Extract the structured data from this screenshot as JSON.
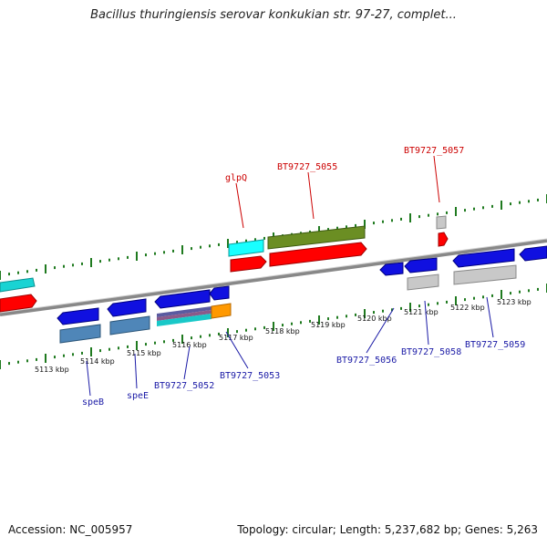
{
  "title": "Bacillus thuringiensis serovar konkukian str. 97-27, complet...",
  "footer": {
    "accession": "Accession: NC_005957",
    "topology": "Topology: circular; Length: 5,237,682 bp; Genes: 5,263"
  },
  "scale_labels": [
    "5113 kbp",
    "5114 kbp",
    "5115 kbp",
    "5116 kbp",
    "5117 kbp",
    "5118 kbp",
    "5119 kbp",
    "5120 kbp",
    "5121 kbp",
    "5122 kbp",
    "5123 kbp"
  ],
  "forward_gene_labels": [
    "glpQ",
    "BT9727_5055",
    "BT9727_5057"
  ],
  "reverse_gene_labels": [
    "speB",
    "speE",
    "BT9727_5052",
    "BT9727_5053",
    "BT9727_5056",
    "BT9727_5058",
    "BT9727_5059"
  ],
  "colors": {
    "forward_label": "#cc0000",
    "reverse_label": "#1a1aa6",
    "tick": "#1f7a1f",
    "backbone": "#888888",
    "cds_red": "#ff0000",
    "gene_blue": "#1010e0",
    "gene_steel": "#4f86b8",
    "gene_cyan": "#19d3d3",
    "gene_olive": "#6b8e23",
    "gene_grey": "#c0c0c0",
    "gene_orange": "#ff9900"
  }
}
